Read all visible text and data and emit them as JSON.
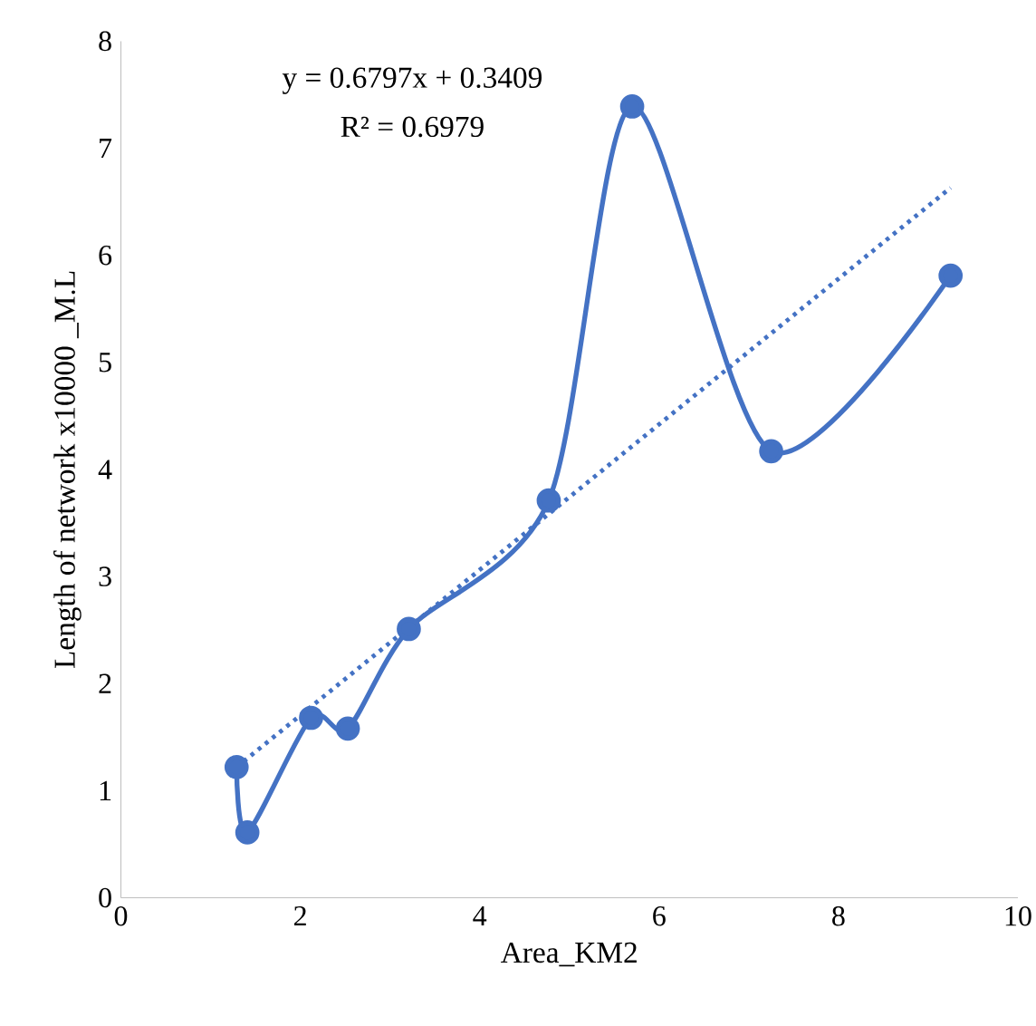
{
  "chart_data": {
    "type": "line",
    "xlabel": "Area_KM2",
    "ylabel": "Length of network x10000 _M.L",
    "x": [
      1.29,
      1.41,
      2.12,
      2.53,
      3.21,
      4.77,
      5.7,
      7.25,
      9.25
    ],
    "series": [
      {
        "color": "#4472c4",
        "values": [
          1.22,
          0.61,
          1.68,
          1.58,
          2.51,
          3.71,
          7.39,
          4.17,
          5.81
        ],
        "marker": "circle",
        "line_style": "solid"
      },
      {
        "type": "line",
        "color": "#4472c4",
        "x": [
          1.29,
          9.25
        ],
        "values": [
          1.22,
          6.63
        ],
        "marker": "none",
        "line_style": "dotted"
      }
    ],
    "annotations": [
      "y = 0.6797x + 0.3409",
      "R² = 0.6979"
    ],
    "xlim": [
      0,
      10
    ],
    "ylim": [
      0,
      8
    ],
    "xticks": [
      0,
      2,
      4,
      6,
      8,
      10
    ],
    "yticks": [
      0,
      1,
      2,
      3,
      4,
      5,
      6,
      7,
      8
    ],
    "grid": false
  }
}
